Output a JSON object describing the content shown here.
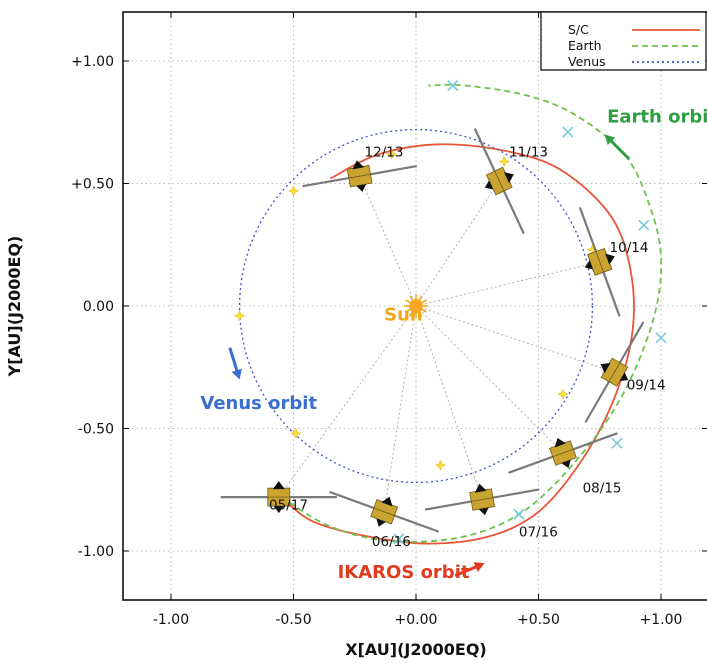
{
  "chart_data": {
    "type": "scatter",
    "xlabel": "X[AU](J2000EQ)",
    "ylabel": "Y[AU](J2000EQ)",
    "xlim": [
      -1.2,
      1.2
    ],
    "ylim": [
      -1.2,
      1.2
    ],
    "xticks": [
      -1.0,
      -0.5,
      0.0,
      0.5,
      1.0
    ],
    "yticks": [
      -1.0,
      -0.5,
      0.0,
      0.5,
      1.0
    ],
    "xtick_labels": [
      "-1.00",
      "-0.50",
      "+0.00",
      "+0.50",
      "+1.00"
    ],
    "ytick_labels": [
      "-1.00",
      "-0.50",
      "0.00",
      "+0.50",
      "+1.00"
    ],
    "grid": true,
    "legend_position": "top-right",
    "series": [
      {
        "name": "S/C",
        "color": "#e8553a",
        "style": "solid",
        "points": [
          [
            -0.55,
            -0.78
          ],
          [
            -0.42,
            -0.88
          ],
          [
            -0.2,
            -0.94
          ],
          [
            0.05,
            -0.97
          ],
          [
            0.3,
            -0.94
          ],
          [
            0.5,
            -0.84
          ],
          [
            0.67,
            -0.64
          ],
          [
            0.8,
            -0.4
          ],
          [
            0.88,
            -0.13
          ],
          [
            0.88,
            0.12
          ],
          [
            0.8,
            0.36
          ],
          [
            0.6,
            0.55
          ],
          [
            0.38,
            0.63
          ],
          [
            0.1,
            0.66
          ],
          [
            -0.15,
            0.62
          ],
          [
            -0.35,
            0.52
          ]
        ]
      },
      {
        "name": "Earth",
        "color": "#6cc24a",
        "style": "dashed",
        "points": [
          [
            -0.55,
            -0.78
          ],
          [
            -0.35,
            -0.9
          ],
          [
            -0.1,
            -0.96
          ],
          [
            0.2,
            -0.94
          ],
          [
            0.45,
            -0.83
          ],
          [
            0.68,
            -0.6
          ],
          [
            0.85,
            -0.35
          ],
          [
            0.97,
            -0.05
          ],
          [
            1.0,
            0.2
          ],
          [
            0.95,
            0.42
          ],
          [
            0.85,
            0.62
          ],
          [
            0.65,
            0.78
          ],
          [
            0.45,
            0.86
          ],
          [
            0.2,
            0.9
          ],
          [
            0.05,
            0.9
          ]
        ]
      },
      {
        "name": "Venus",
        "color": "#4050c8",
        "style": "dotted",
        "shape": "circle",
        "radius_au": 0.72,
        "center": [
          0.0,
          0.0
        ]
      }
    ],
    "earth_markers": [
      [
        0.15,
        0.9
      ],
      [
        0.62,
        0.71
      ],
      [
        0.93,
        0.33
      ],
      [
        1.0,
        -0.13
      ],
      [
        0.82,
        -0.56
      ],
      [
        0.42,
        -0.85
      ],
      [
        -0.58,
        -0.78
      ],
      [
        -0.07,
        -0.95
      ]
    ],
    "venus_markers": [
      [
        -0.1,
        0.62
      ],
      [
        -0.5,
        0.47
      ],
      [
        -0.72,
        -0.04
      ],
      [
        -0.49,
        -0.52
      ],
      [
        0.1,
        -0.65
      ],
      [
        0.6,
        -0.36
      ],
      [
        0.72,
        0.23
      ],
      [
        0.36,
        0.59
      ]
    ],
    "spacecraft": [
      {
        "date": "12/13",
        "pos": [
          -0.23,
          0.53
        ],
        "angle": -10,
        "label_offset": [
          0.02,
          0.1
        ]
      },
      {
        "date": "11/13",
        "pos": [
          0.34,
          0.51
        ],
        "angle": 65,
        "label_offset": [
          0.04,
          0.12
        ]
      },
      {
        "date": "10/14",
        "pos": [
          0.75,
          0.18
        ],
        "angle": 70,
        "label_offset": [
          0.04,
          0.06
        ]
      },
      {
        "date": "09/14",
        "pos": [
          0.81,
          -0.27
        ],
        "angle": -60,
        "label_offset": [
          0.05,
          -0.05
        ]
      },
      {
        "date": "08/15",
        "pos": [
          0.6,
          -0.6
        ],
        "angle": -20,
        "label_offset": [
          0.08,
          -0.14
        ]
      },
      {
        "date": "07/16",
        "pos": [
          0.27,
          -0.79
        ],
        "angle": -10,
        "label_offset": [
          0.15,
          -0.13
        ]
      },
      {
        "date": "06/16",
        "pos": [
          -0.13,
          -0.84
        ],
        "angle": 20,
        "label_offset": [
          -0.05,
          -0.12
        ]
      },
      {
        "date": "05/17",
        "pos": [
          -0.56,
          -0.78
        ],
        "angle": 0,
        "label_offset": [
          -0.04,
          -0.03
        ]
      }
    ],
    "annotations": [
      {
        "text": "Sun",
        "pos": [
          -0.13,
          -0.06
        ],
        "color": "#f0a818"
      },
      {
        "text": "Earth orbit",
        "pos": [
          0.78,
          0.75
        ],
        "color": "#2ea043"
      },
      {
        "text": "Venus orbit",
        "pos": [
          -0.88,
          -0.42
        ],
        "color": "#3a6fcf"
      },
      {
        "text": "IKAROS orbit",
        "pos": [
          -0.32,
          -1.11
        ],
        "color": "#e33b1e"
      }
    ],
    "arrows": [
      {
        "from": [
          0.87,
          0.6
        ],
        "to": [
          0.77,
          0.7
        ],
        "color": "#2ea043"
      },
      {
        "from": [
          -0.76,
          -0.17
        ],
        "to": [
          -0.72,
          -0.3
        ],
        "color": "#3a6fcf"
      },
      {
        "from": [
          0.16,
          -1.1
        ],
        "to": [
          0.28,
          -1.05
        ],
        "color": "#e33b1e"
      }
    ]
  }
}
